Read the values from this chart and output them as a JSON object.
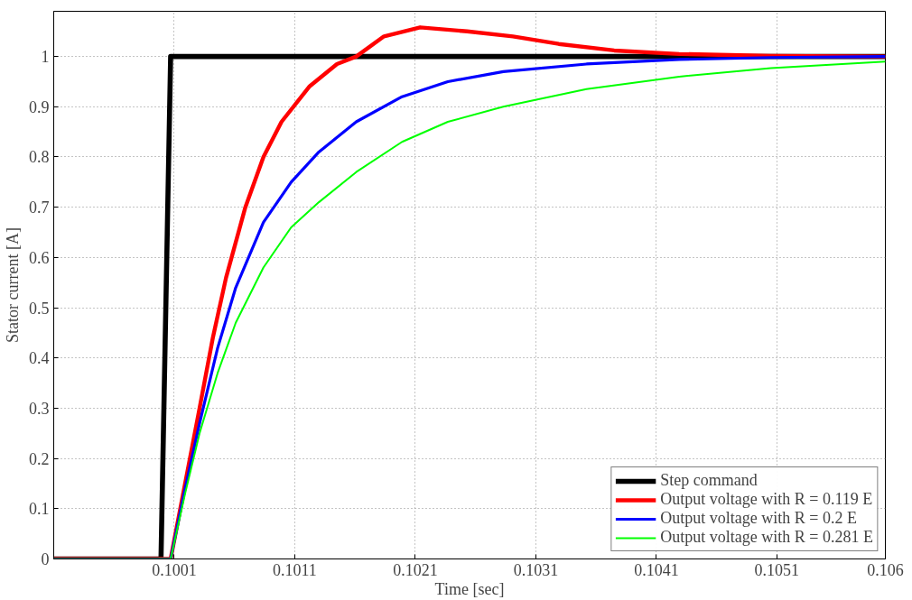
{
  "chart_data": {
    "type": "line",
    "xlabel": "Time [sec]",
    "ylabel": "Stator current [A]",
    "xlim": [
      0.0991,
      0.106
    ],
    "ylim": [
      0,
      1.09
    ],
    "xticks": [
      0.1001,
      0.1011,
      0.1021,
      0.1031,
      0.1041,
      0.1051,
      0.106
    ],
    "yticks": [
      0,
      0.1,
      0.2,
      0.3,
      0.4,
      0.5,
      0.6,
      0.7,
      0.8,
      0.9,
      1
    ],
    "grid": true,
    "legend": "bottom right",
    "line_style": "solid",
    "marker": "none",
    "series": [
      {
        "name": "Step command",
        "color": "#000000",
        "x": [
          0.0991,
          0.09999,
          0.10007,
          0.106
        ],
        "values": [
          0,
          0,
          1,
          1
        ]
      },
      {
        "name": "Output voltage with R = 0.119 E",
        "color": "#ff0000",
        "x": [
          0.0991,
          0.10007,
          0.10019,
          0.10031,
          0.10042,
          0.10053,
          0.10069,
          0.10084,
          0.10099,
          0.10122,
          0.10145,
          0.10161,
          0.10184,
          0.10214,
          0.10253,
          0.10291,
          0.10329,
          0.10375,
          0.10429,
          0.10505,
          0.106
        ],
        "values": [
          0,
          0,
          0.15,
          0.3,
          0.44,
          0.56,
          0.7,
          0.8,
          0.87,
          0.94,
          0.985,
          1.0,
          1.04,
          1.058,
          1.05,
          1.04,
          1.025,
          1.012,
          1.005,
          1.001,
          1.0
        ]
      },
      {
        "name": "Output voltage with R = 0.2 E",
        "color": "#0000ff",
        "x": [
          0.0991,
          0.10007,
          0.10019,
          0.10031,
          0.10046,
          0.10061,
          0.10084,
          0.10107,
          0.1013,
          0.10161,
          0.10199,
          0.10237,
          0.10283,
          0.10352,
          0.10429,
          0.10505,
          0.106
        ],
        "values": [
          0,
          0,
          0.14,
          0.27,
          0.42,
          0.54,
          0.67,
          0.75,
          0.81,
          0.87,
          0.92,
          0.95,
          0.97,
          0.985,
          0.994,
          0.998,
          1.0
        ]
      },
      {
        "name": "Output voltage with R = 0.281 E",
        "color": "#00ff00",
        "x": [
          0.0991,
          0.10007,
          0.10019,
          0.10031,
          0.10046,
          0.10061,
          0.10084,
          0.10107,
          0.1013,
          0.10161,
          0.10199,
          0.10237,
          0.10283,
          0.10352,
          0.10429,
          0.10505,
          0.106
        ],
        "values": [
          0,
          0,
          0.13,
          0.25,
          0.37,
          0.47,
          0.58,
          0.66,
          0.71,
          0.77,
          0.83,
          0.87,
          0.9,
          0.935,
          0.96,
          0.977,
          0.99
        ]
      }
    ]
  }
}
